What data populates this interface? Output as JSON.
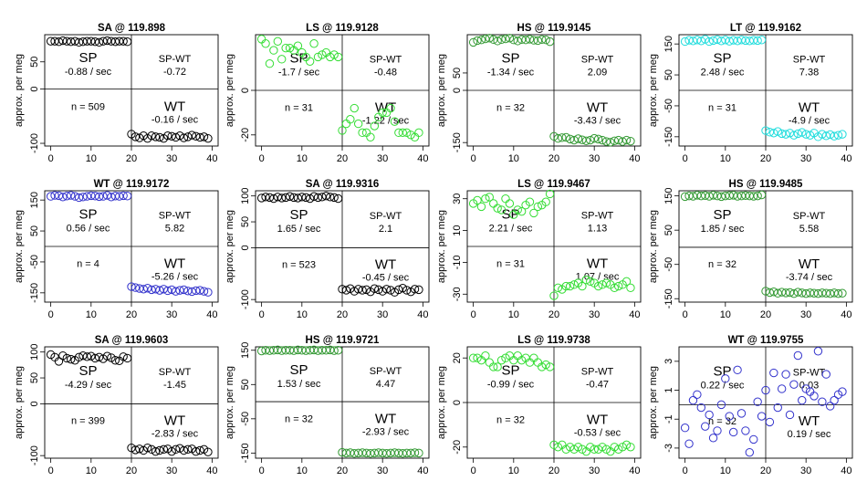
{
  "chart_data": [
    {
      "type": "scatter",
      "title": "SA @ 119.898",
      "color": "#000000",
      "ylabel": "approx. per meg",
      "xticks": [
        0,
        10,
        20,
        30,
        40
      ],
      "ylim": [
        -105,
        100
      ],
      "yticks": [
        50,
        0,
        -100
      ],
      "left": [
        88,
        88,
        87,
        89,
        88,
        87,
        88,
        86,
        87,
        88,
        88,
        87,
        86,
        88,
        89,
        88,
        87,
        88,
        88,
        87
      ],
      "right": [
        -83,
        -88,
        -90,
        -86,
        -91,
        -86,
        -88,
        -89,
        -91,
        -86,
        -87,
        -89,
        -86,
        -90,
        -88,
        -85,
        -87,
        -89,
        -88,
        -91
      ],
      "sp_label": "SP",
      "sp_rate": "-0.88 / sec",
      "spwt_label": "SP-WT",
      "spwt_value": "-0.72",
      "n_text": "n = 509",
      "wt_label": "WT",
      "wt_rate": "-0.16 / sec"
    },
    {
      "type": "scatter",
      "title": "LS @ 119.9128",
      "color": "#33dd33",
      "ylabel": "approx. per meg",
      "xticks": [
        0,
        10,
        20,
        30,
        40
      ],
      "ylim": [
        -25,
        25
      ],
      "yticks": [
        0,
        -20
      ],
      "left": [
        23,
        21,
        12,
        18,
        22,
        14,
        19,
        19,
        18,
        20,
        17,
        15,
        13,
        21,
        15,
        16,
        17,
        15,
        16,
        15
      ],
      "right": [
        -18,
        -15,
        -13,
        -8,
        -15,
        -19,
        -19,
        -21,
        -16,
        -12,
        -10,
        -10,
        -8,
        -14,
        -19,
        -19,
        -19,
        -20,
        -21,
        -19
      ],
      "sp_label": "SP",
      "sp_rate": "-1.7 / sec",
      "spwt_label": "SP-WT",
      "spwt_value": "-0.48",
      "n_text": "n = 31",
      "wt_label": "WT",
      "wt_rate": "-1.22 / sec"
    },
    {
      "type": "scatter",
      "title": "HS @ 119.9145",
      "color": "#339933",
      "ylabel": "approx. per meg",
      "xticks": [
        0,
        10,
        20,
        30,
        40
      ],
      "ylim": [
        -160,
        160
      ],
      "yticks": [
        50,
        0,
        -150
      ],
      "left": [
        138,
        143,
        145,
        148,
        150,
        146,
        142,
        146,
        148,
        150,
        145,
        142,
        146,
        145,
        147,
        144,
        143,
        146,
        145,
        140
      ],
      "right": [
        -132,
        -138,
        -136,
        -135,
        -140,
        -143,
        -139,
        -142,
        -145,
        -143,
        -138,
        -140,
        -143,
        -147,
        -149,
        -145,
        -143,
        -147,
        -143,
        -146
      ],
      "sp_label": "SP",
      "sp_rate": "-1.34 / sec",
      "spwt_label": "SP-WT",
      "spwt_value": "2.09",
      "n_text": "n = 32",
      "wt_label": "WT",
      "wt_rate": "-3.43 / sec"
    },
    {
      "type": "scatter",
      "title": "LT @ 119.9162",
      "color": "#22dddd",
      "ylabel": "approx. per meg",
      "xticks": [
        0,
        10,
        20,
        30,
        40
      ],
      "ylim": [
        -180,
        180
      ],
      "yticks": [
        150,
        50,
        -50,
        -150
      ],
      "left": [
        158,
        162,
        160,
        163,
        160,
        165,
        158,
        161,
        164,
        160,
        163,
        159,
        162,
        160,
        163,
        161,
        160,
        162,
        161,
        163
      ],
      "right": [
        -130,
        -135,
        -138,
        -133,
        -140,
        -142,
        -138,
        -145,
        -140,
        -136,
        -142,
        -145,
        -138,
        -150,
        -142,
        -147,
        -143,
        -148,
        -145,
        -142
      ],
      "sp_label": "SP",
      "sp_rate": "2.48 / sec",
      "spwt_label": "SP-WT",
      "spwt_value": "7.38",
      "n_text": "n = 31",
      "wt_label": "WT",
      "wt_rate": "-4.9 / sec"
    },
    {
      "type": "scatter",
      "title": "WT @ 119.9172",
      "color": "#3333cc",
      "ylabel": "approx. per meg",
      "xticks": [
        0,
        10,
        20,
        30,
        40
      ],
      "ylim": [
        -180,
        180
      ],
      "yticks": [
        150,
        50,
        -50,
        -150
      ],
      "left": [
        162,
        165,
        164,
        160,
        163,
        165,
        162,
        158,
        160,
        162,
        164,
        163,
        161,
        162,
        165,
        160,
        163,
        162,
        164,
        163
      ],
      "right": [
        -130,
        -133,
        -136,
        -138,
        -135,
        -140,
        -138,
        -142,
        -138,
        -143,
        -140,
        -145,
        -142,
        -140,
        -144,
        -146,
        -143,
        -142,
        -145,
        -148
      ],
      "sp_label": "SP",
      "sp_rate": "0.56 / sec",
      "spwt_label": "SP-WT",
      "spwt_value": "5.82",
      "n_text": "n = 4",
      "wt_label": "WT",
      "wt_rate": "-5.26 / sec"
    },
    {
      "type": "scatter",
      "title": "SA @ 119.9316",
      "color": "#000000",
      "ylabel": "approx. per meg",
      "xticks": [
        0,
        10,
        20,
        30,
        40
      ],
      "ylim": [
        -105,
        110
      ],
      "yticks": [
        100,
        50,
        0,
        -100
      ],
      "left": [
        96,
        98,
        97,
        95,
        98,
        96,
        97,
        99,
        97,
        96,
        98,
        97,
        95,
        99,
        97,
        98,
        100,
        98,
        97,
        95
      ],
      "right": [
        -80,
        -82,
        -79,
        -84,
        -80,
        -82,
        -81,
        -85,
        -79,
        -81,
        -84,
        -80,
        -82,
        -86,
        -81,
        -78,
        -82,
        -85,
        -80,
        -81
      ],
      "sp_label": "SP",
      "sp_rate": "1.65 / sec",
      "spwt_label": "SP-WT",
      "spwt_value": "2.1",
      "n_text": "n = 523",
      "wt_label": "WT",
      "wt_rate": "-0.45 / sec"
    },
    {
      "type": "scatter",
      "title": "LS @ 119.9467",
      "color": "#33dd33",
      "ylabel": "approx. per meg",
      "xticks": [
        0,
        10,
        20,
        30,
        40
      ],
      "ylim": [
        -35,
        35
      ],
      "yticks": [
        30,
        10,
        -10,
        -30
      ],
      "left": [
        27,
        29,
        25,
        30,
        31,
        27,
        24,
        23,
        30,
        27,
        20,
        23,
        22,
        26,
        28,
        21,
        25,
        26,
        28,
        33
      ],
      "right": [
        -31,
        -26,
        -27,
        -25,
        -25,
        -24,
        -23,
        -25,
        -21,
        -22,
        -23,
        -25,
        -24,
        -23,
        -24,
        -26,
        -25,
        -24,
        -22,
        -26
      ],
      "sp_label": "SP",
      "sp_rate": "2.21 / sec",
      "spwt_label": "SP-WT",
      "spwt_value": "1.13",
      "n_text": "n = 31",
      "wt_label": "WT",
      "wt_rate": "1.07 / sec"
    },
    {
      "type": "scatter",
      "title": "HS @ 119.9485",
      "color": "#339933",
      "ylabel": "approx. per meg",
      "xticks": [
        0,
        10,
        20,
        30,
        40
      ],
      "ylim": [
        -160,
        165
      ],
      "yticks": [
        150,
        50,
        -50,
        -150
      ],
      "left": [
        148,
        150,
        149,
        152,
        150,
        151,
        149,
        152,
        150,
        148,
        150,
        151,
        152,
        149,
        150,
        151,
        150,
        149,
        150,
        153
      ],
      "right": [
        -128,
        -132,
        -130,
        -134,
        -131,
        -133,
        -132,
        -135,
        -131,
        -133,
        -135,
        -133,
        -134,
        -135,
        -133,
        -134,
        -135,
        -133,
        -135,
        -134
      ],
      "sp_label": "SP",
      "sp_rate": "1.85 / sec",
      "spwt_label": "SP-WT",
      "spwt_value": "5.58",
      "n_text": "n = 32",
      "wt_label": "WT",
      "wt_rate": "-3.74 / sec"
    },
    {
      "type": "scatter",
      "title": "SA @ 119.9603",
      "color": "#000000",
      "ylabel": "approx. per meg",
      "xticks": [
        0,
        10,
        20,
        30,
        40
      ],
      "ylim": [
        -105,
        110
      ],
      "yticks": [
        100,
        50,
        0,
        -100
      ],
      "left": [
        95,
        90,
        82,
        93,
        88,
        86,
        84,
        90,
        93,
        91,
        92,
        88,
        90,
        87,
        92,
        89,
        84,
        83,
        91,
        88
      ],
      "right": [
        -85,
        -89,
        -87,
        -90,
        -85,
        -88,
        -92,
        -90,
        -88,
        -87,
        -92,
        -88,
        -86,
        -90,
        -88,
        -87,
        -92,
        -90,
        -88,
        -93
      ],
      "sp_label": "SP",
      "sp_rate": "-4.29 / sec",
      "spwt_label": "SP-WT",
      "spwt_value": "-1.45",
      "n_text": "n = 399",
      "wt_label": "WT",
      "wt_rate": "-2.83 / sec"
    },
    {
      "type": "scatter",
      "title": "HS @ 119.9721",
      "color": "#339933",
      "ylabel": "approx. per meg",
      "xticks": [
        0,
        10,
        20,
        30,
        40
      ],
      "ylim": [
        -165,
        160
      ],
      "yticks": [
        150,
        50,
        -50,
        -150
      ],
      "left": [
        148,
        150,
        149,
        150,
        151,
        149,
        150,
        150,
        149,
        151,
        150,
        149,
        150,
        151,
        149,
        150,
        150,
        151,
        149,
        150
      ],
      "right": [
        -148,
        -150,
        -149,
        -151,
        -150,
        -149,
        -150,
        -151,
        -150,
        -149,
        -150,
        -151,
        -150,
        -149,
        -150,
        -151,
        -150,
        -150,
        -149,
        -150
      ],
      "sp_label": "SP",
      "sp_rate": "1.53 / sec",
      "spwt_label": "SP-WT",
      "spwt_value": "4.47",
      "n_text": "n = 32",
      "wt_label": "WT",
      "wt_rate": "-2.93 / sec"
    },
    {
      "type": "scatter",
      "title": "LS @ 119.9738",
      "color": "#33dd33",
      "ylabel": "approx. per meg",
      "xticks": [
        0,
        10,
        20,
        30,
        40
      ],
      "ylim": [
        -25,
        25
      ],
      "yticks": [
        20,
        0,
        -20
      ],
      "left": [
        20,
        20,
        19,
        21,
        18,
        16,
        16,
        19,
        20,
        21,
        19,
        21,
        19,
        20,
        18,
        20,
        18,
        16,
        17,
        16
      ],
      "right": [
        -19,
        -20,
        -19,
        -21,
        -20,
        -21,
        -20,
        -21,
        -22,
        -20,
        -21,
        -21,
        -20,
        -21,
        -22,
        -20,
        -21,
        -20,
        -19,
        -20
      ],
      "sp_label": "SP",
      "sp_rate": "-0.99 / sec",
      "spwt_label": "SP-WT",
      "spwt_value": "-0.47",
      "n_text": "n = 32",
      "wt_label": "WT",
      "wt_rate": "-0.53 / sec"
    },
    {
      "type": "scatter",
      "title": "WT @ 119.9755",
      "color": "#3333cc",
      "ylabel": "approx. per meg",
      "xticks": [
        0,
        10,
        20,
        30,
        40
      ],
      "ylim": [
        -3.7,
        4
      ],
      "yticks": [
        3,
        1,
        -1,
        -3
      ],
      "left": [
        -1.6,
        -2.7,
        0.3,
        0.7,
        -0.2,
        -1.5,
        -0.7,
        -2.3,
        -1.8,
        0,
        1.8,
        -0.8,
        -1.9,
        2.4,
        -0.6,
        -1.8,
        -3.3,
        -2.4,
        0.2,
        -0.8
      ],
      "right": [
        1,
        -1.2,
        2.2,
        -0.2,
        1.1,
        2.1,
        -0.7,
        1.4,
        3.4,
        0.3,
        1.1,
        0.9,
        0.6,
        3.7,
        0.2,
        2.1,
        -0.1,
        0.3,
        0.7,
        0.9
      ],
      "sp_label": "SP",
      "sp_rate": "0.22 / sec",
      "spwt_label": "SP-WT",
      "spwt_value": "0.03",
      "n_text": "n = 32",
      "wt_label": "WT",
      "wt_rate": "0.19 / sec"
    }
  ]
}
